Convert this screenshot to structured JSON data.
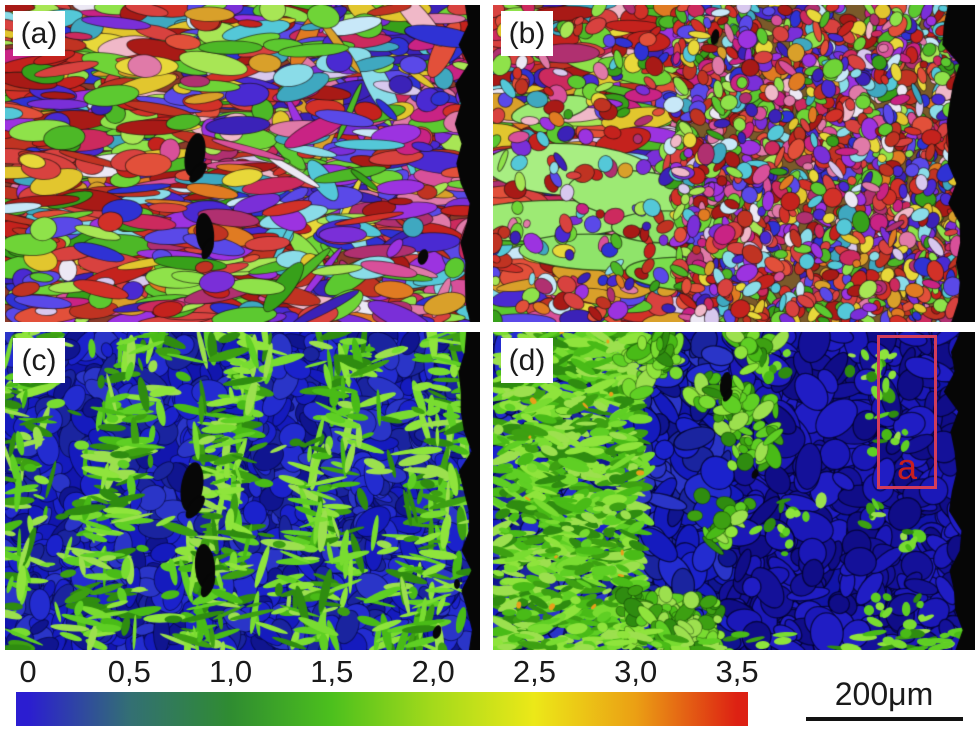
{
  "figure": {
    "panels": [
      {
        "id": "a",
        "label": "(a)"
      },
      {
        "id": "b",
        "label": "(b)"
      },
      {
        "id": "c",
        "label": "(c)"
      },
      {
        "id": "d",
        "label": "(d)",
        "annotation": {
          "label": "a",
          "box_color": "#d23c5a",
          "text_color": "#c81f1f"
        }
      }
    ],
    "colorbar": {
      "min": 0,
      "max": 3.5,
      "ticks": [
        {
          "label": "0",
          "value": 0
        },
        {
          "label": "0,5",
          "value": 0.5
        },
        {
          "label": "1,0",
          "value": 1.0
        },
        {
          "label": "1,5",
          "value": 1.5
        },
        {
          "label": "2,0",
          "value": 2.0
        },
        {
          "label": "2,5",
          "value": 2.5
        },
        {
          "label": "3,0",
          "value": 3.0
        },
        {
          "label": "3,5",
          "value": 3.5
        }
      ],
      "gradient": [
        {
          "value": 0,
          "color": "#2b1dd1"
        },
        {
          "value": 0.5,
          "color": "#336f74"
        },
        {
          "value": 1.0,
          "color": "#2f8c31"
        },
        {
          "value": 1.5,
          "color": "#4cc01d"
        },
        {
          "value": 2.0,
          "color": "#a4da1b"
        },
        {
          "value": 2.5,
          "color": "#ece818"
        },
        {
          "value": 3.0,
          "color": "#eb9f14"
        },
        {
          "value": 3.5,
          "color": "#dd2113"
        }
      ]
    },
    "scalebar": {
      "label": "200μm",
      "color": "#121212"
    }
  }
}
